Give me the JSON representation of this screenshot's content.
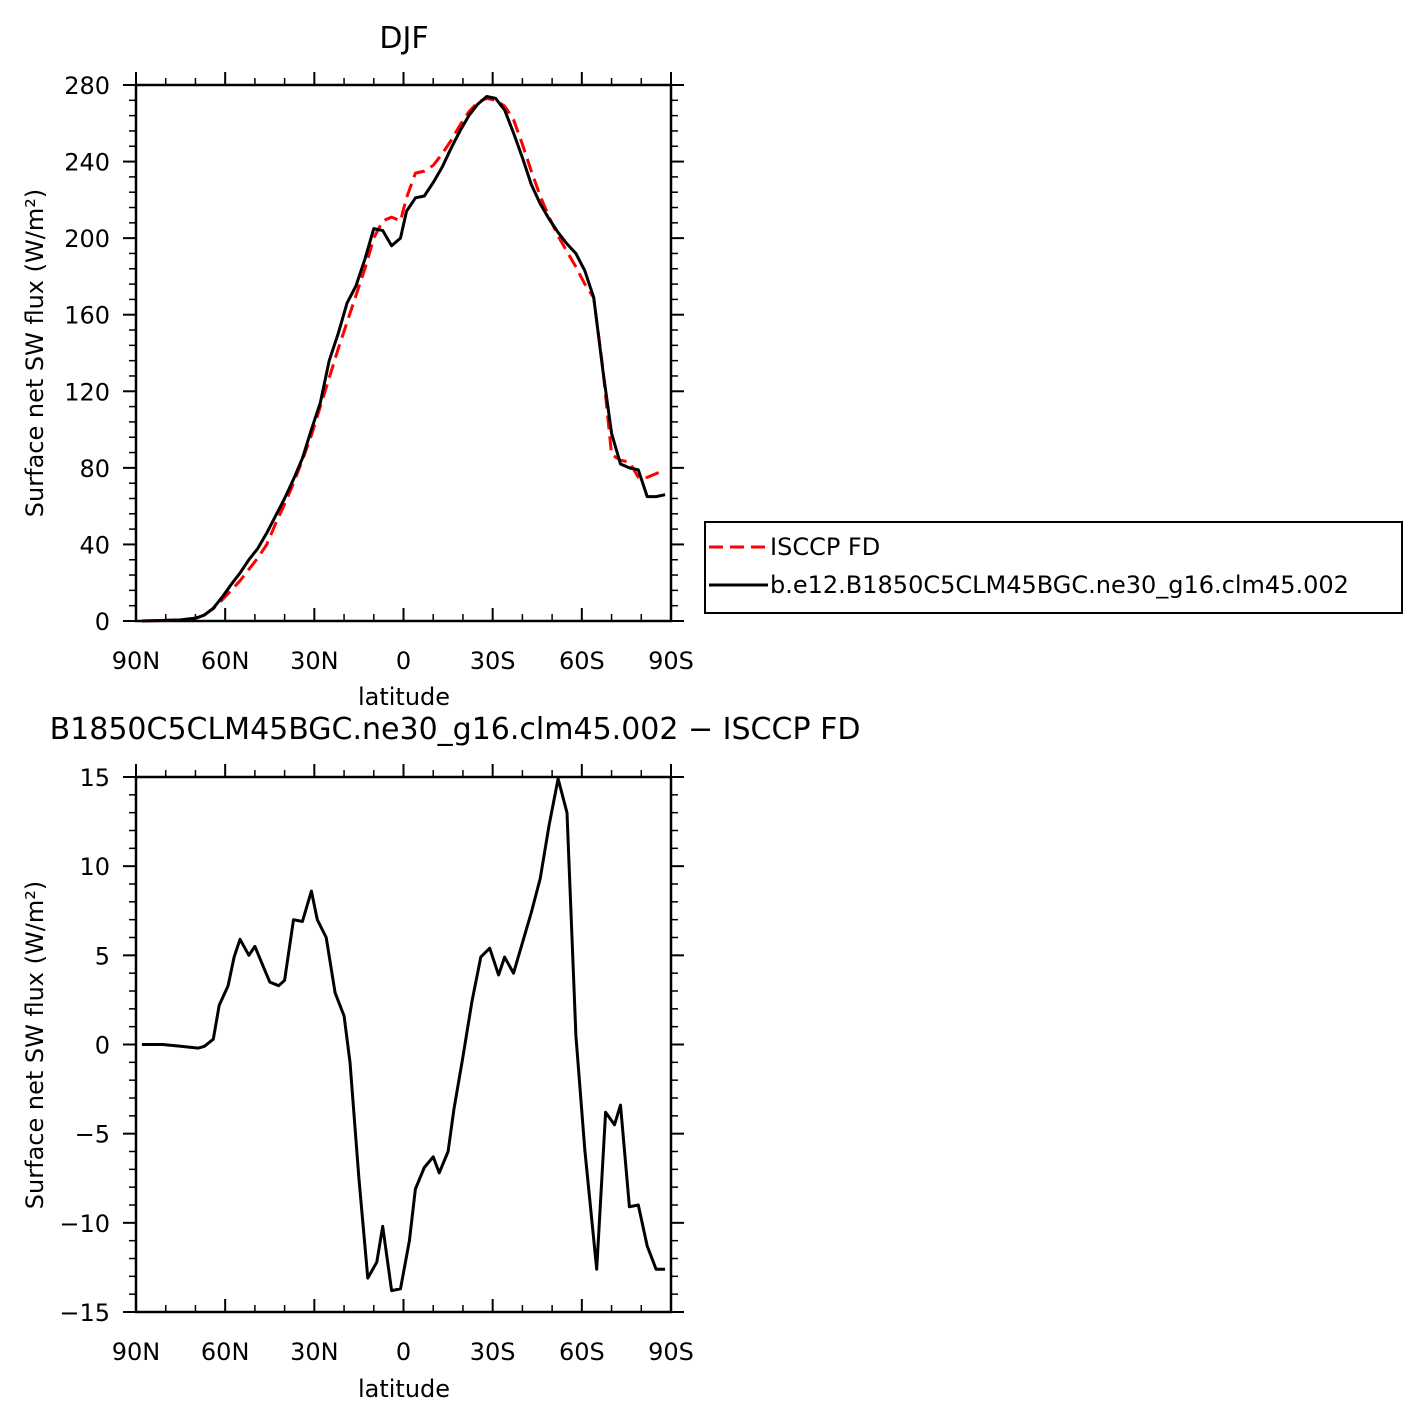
{
  "chart_data": [
    {
      "type": "line",
      "title": "DJF",
      "xlabel": "latitude",
      "ylabel": "Surface net SW flux (W/m²)",
      "xlim": [
        90,
        -90
      ],
      "ylim": [
        0,
        280
      ],
      "x_ticks": [
        {
          "value": 90,
          "label": "90N"
        },
        {
          "value": 60,
          "label": "60N"
        },
        {
          "value": 30,
          "label": "30N"
        },
        {
          "value": 0,
          "label": "0"
        },
        {
          "value": -30,
          "label": "30S"
        },
        {
          "value": -60,
          "label": "60S"
        },
        {
          "value": -90,
          "label": "90S"
        }
      ],
      "y_ticks": [
        {
          "value": 0,
          "label": "0"
        },
        {
          "value": 40,
          "label": "40"
        },
        {
          "value": 80,
          "label": "80"
        },
        {
          "value": 120,
          "label": "120"
        },
        {
          "value": 160,
          "label": "160"
        },
        {
          "value": 200,
          "label": "200"
        },
        {
          "value": 240,
          "label": "240"
        },
        {
          "value": 280,
          "label": "280"
        }
      ],
      "legend_position": "right",
      "series": [
        {
          "name": "ISCCP FD",
          "color": "#ff0000",
          "dash": "dashed",
          "x": [
            88,
            80,
            75,
            70,
            67,
            64,
            61,
            58,
            55,
            52,
            49,
            46,
            43,
            40,
            37,
            34,
            31,
            28,
            25,
            22,
            19,
            16,
            13,
            10,
            7,
            4,
            1,
            -1,
            -4,
            -7,
            -10,
            -13,
            -16,
            -19,
            -22,
            -25,
            -28,
            -31,
            -34,
            -37,
            -40,
            -43,
            -46,
            -49,
            -52,
            -55,
            -58,
            -61,
            -64,
            -67,
            -70,
            -73,
            -76,
            -79,
            -82,
            -85,
            -88
          ],
          "y": [
            0,
            0.3,
            0.6,
            1.5,
            3.3,
            6.5,
            11,
            16,
            21,
            27,
            33,
            40,
            51,
            61,
            72,
            84,
            97,
            112,
            127,
            142,
            156,
            170,
            184,
            200,
            209,
            211,
            209,
            221,
            234,
            235,
            238,
            244,
            251,
            259,
            266,
            271,
            273,
            272,
            269,
            262,
            249,
            235,
            222,
            211,
            201,
            193,
            185,
            176,
            169,
            133,
            87,
            84,
            83,
            75,
            75,
            77,
            79
          ]
        },
        {
          "name": "b.e12.B1850C5CLM45BGC.ne30_g16.clm45.002",
          "color": "#000000",
          "dash": "solid",
          "x": [
            88,
            80,
            75,
            70,
            67,
            64,
            61,
            58,
            55,
            52,
            49,
            46,
            43,
            40,
            37,
            34,
            31,
            28,
            25,
            22,
            19,
            16,
            13,
            10,
            7,
            4,
            1,
            -1,
            -4,
            -7,
            -10,
            -13,
            -16,
            -19,
            -22,
            -25,
            -28,
            -31,
            -34,
            -37,
            -40,
            -43,
            -46,
            -49,
            -52,
            -55,
            -58,
            -61,
            -64,
            -67,
            -70,
            -73,
            -76,
            -79,
            -82,
            -85,
            -88
          ],
          "y": [
            0,
            0.3,
            0.6,
            1.4,
            3.1,
            6.7,
            12.5,
            19,
            25,
            32,
            38,
            46,
            55,
            64,
            74,
            85,
            100,
            114,
            136,
            150,
            166,
            175,
            189,
            205,
            204,
            196,
            200,
            214,
            221,
            222,
            229,
            237,
            247,
            256,
            264,
            270,
            274,
            273,
            267,
            255,
            242,
            228,
            218,
            210,
            203,
            197,
            192,
            183,
            169,
            132,
            98,
            82,
            80,
            79,
            65,
            65,
            66
          ]
        }
      ]
    },
    {
      "type": "line",
      "title": "B1850C5CLM45BGC.ne30_g16.clm45.002 − ISCCP FD",
      "xlabel": "latitude",
      "ylabel": "Surface net SW flux (W/m²)",
      "xlim": [
        90,
        -90
      ],
      "ylim": [
        -15,
        15
      ],
      "x_ticks": [
        {
          "value": 90,
          "label": "90N"
        },
        {
          "value": 60,
          "label": "60N"
        },
        {
          "value": 30,
          "label": "30N"
        },
        {
          "value": 0,
          "label": "0"
        },
        {
          "value": -30,
          "label": "30S"
        },
        {
          "value": -60,
          "label": "60S"
        },
        {
          "value": -90,
          "label": "90S"
        }
      ],
      "y_ticks": [
        {
          "value": -15,
          "label": "−15"
        },
        {
          "value": -10,
          "label": "−10"
        },
        {
          "value": -5,
          "label": "−5"
        },
        {
          "value": 0,
          "label": "0"
        },
        {
          "value": 5,
          "label": "5"
        },
        {
          "value": 10,
          "label": "10"
        },
        {
          "value": 15,
          "label": "15"
        }
      ],
      "series": [
        {
          "name": "",
          "color": "#000000",
          "dash": "solid",
          "x": [
            88,
            81,
            75,
            69,
            67,
            64,
            62,
            59,
            57,
            55,
            52,
            50,
            47,
            45,
            42,
            40,
            37,
            34,
            31,
            29,
            26,
            23,
            20,
            18,
            15,
            12,
            9,
            7,
            4,
            1,
            -2,
            -4,
            -7,
            -10,
            -12,
            -15,
            -17,
            -20,
            -23,
            -26,
            -29,
            -32,
            -34,
            -37,
            -40,
            -43,
            -46,
            -49,
            -52,
            -55,
            -58,
            -61,
            -65,
            -68,
            -71,
            -73,
            -76,
            -79,
            -82,
            -85,
            -88
          ],
          "y": [
            0,
            0,
            -0.1,
            -0.2,
            -0.1,
            0.3,
            2.2,
            3.3,
            4.9,
            5.9,
            5.0,
            5.5,
            4.3,
            3.5,
            3.3,
            3.6,
            7.0,
            6.9,
            8.6,
            7.0,
            6.0,
            2.9,
            1.6,
            -1.0,
            -7.5,
            -13.1,
            -12.2,
            -10.2,
            -13.8,
            -13.7,
            -11.0,
            -8.1,
            -6.9,
            -6.3,
            -7.2,
            -6.0,
            -3.6,
            -0.7,
            2.4,
            4.9,
            5.4,
            3.9,
            4.9,
            4.0,
            5.7,
            7.4,
            9.3,
            12.3,
            14.9,
            13.0,
            0.5,
            -5.9,
            -12.6,
            -3.8,
            -4.5,
            -3.4,
            -9.1,
            -9.0,
            -11.3,
            -12.6,
            -12.6
          ]
        }
      ]
    }
  ]
}
